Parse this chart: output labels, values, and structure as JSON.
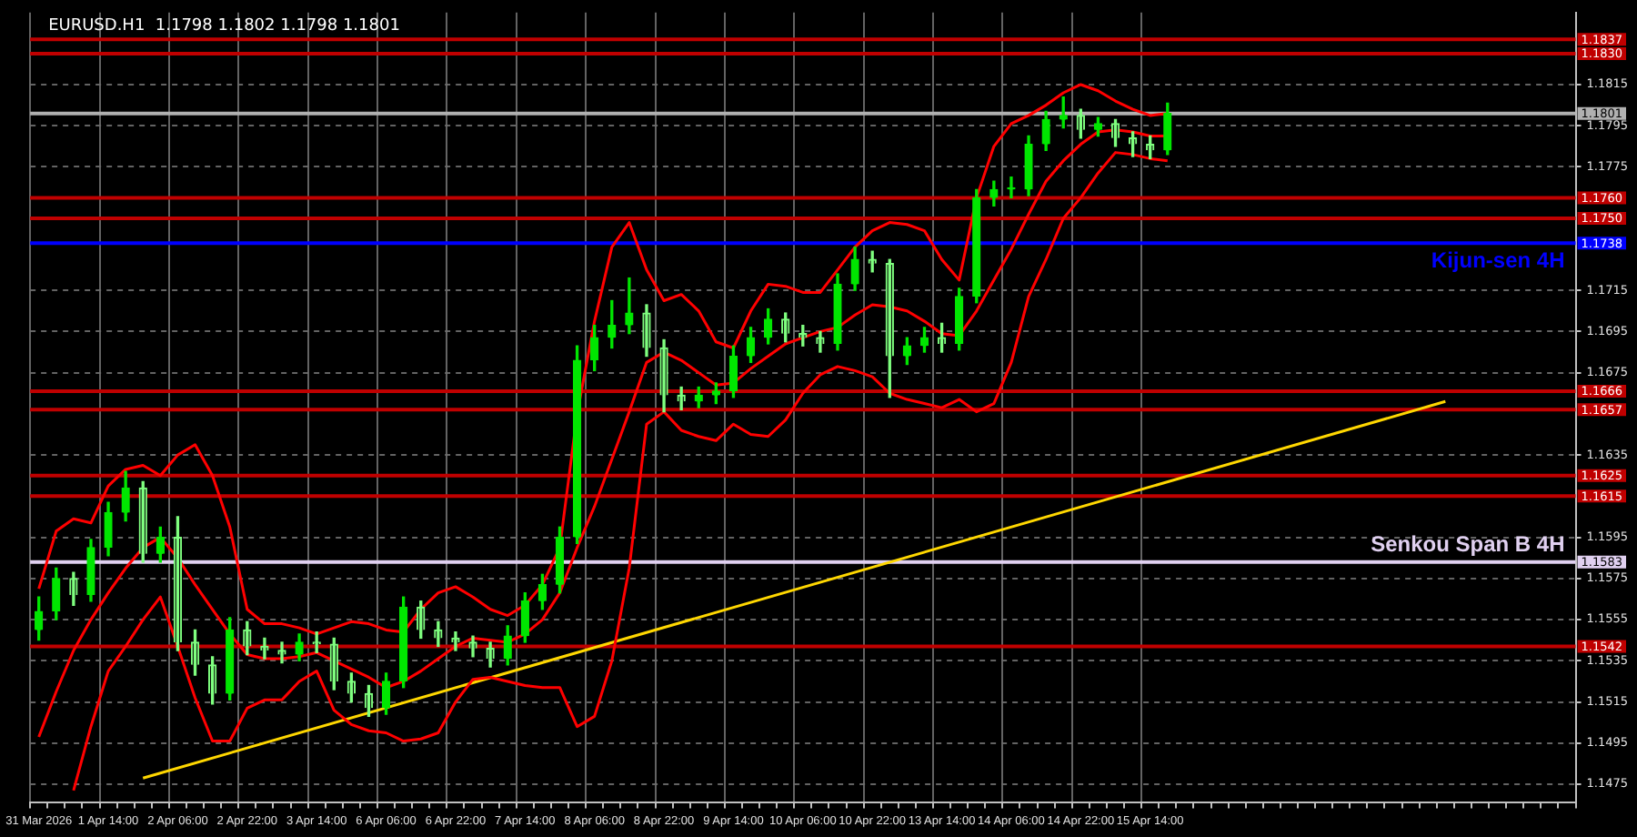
{
  "chart_data": {
    "type": "candlestick",
    "title": "EURUSD.H1  1.1798 1.1802 1.1798 1.1801",
    "colors": [
      "#00e600",
      "#00e600",
      "#7fff7f",
      "#00e600",
      "#00e600",
      "#00e600",
      "#7fff7f",
      "#00e600",
      "#7fff7f",
      "#7fff7f",
      "#7fff7f",
      "#00e600",
      "#7fff7f",
      "#7fff7f",
      "#7fff7f",
      "#00e600",
      "#7fff7f",
      "#7fff7f",
      "#7fff7f",
      "#7fff7f",
      "#00e600",
      "#00e600",
      "#7fff7f",
      "#7fff7f",
      "#7fff7f",
      "#7fff7f",
      "#7fff7f",
      "#00e600",
      "#00e600",
      "#00e600",
      "#00e600",
      "#00e600",
      "#00e600",
      "#00e600",
      "#00e600",
      "#7fff7f",
      "#7fff7f",
      "#7fff7f",
      "#00e600",
      "#00e600",
      "#00e600",
      "#00e600",
      "#00e600",
      "#7fff7f",
      "#7fff7f",
      "#7fff7f",
      "#00e600",
      "#00e600",
      "#7fff7f",
      "#7fff7f",
      "#00e600",
      "#00e600",
      "#7fff7f",
      "#00e600",
      "#00e600",
      "#00e600",
      "#00e600",
      "#00e600",
      "#00e600",
      "#00e600",
      "#7fff7f",
      "#00e600",
      "#7fff7f",
      "#7fff7f",
      "#7fff7f",
      "#00e600",
      null,
      null,
      null,
      null,
      null,
      null,
      null,
      null,
      null,
      null,
      null,
      null,
      null,
      null,
      null,
      null,
      null,
      null,
      null,
      null,
      null,
      null,
      null
    ],
    "categories": [
      "31 Mar 2026",
      null,
      null,
      null,
      "1 Apr 14:00",
      null,
      null,
      null,
      "2 Apr 06:00",
      null,
      null,
      null,
      "2 Apr 22:00",
      null,
      null,
      null,
      "3 Apr 14:00",
      null,
      null,
      null,
      "6 Apr 06:00",
      null,
      null,
      null,
      "6 Apr 22:00",
      null,
      null,
      null,
      "7 Apr 14:00",
      null,
      null,
      null,
      "8 Apr 06:00",
      null,
      null,
      null,
      "8 Apr 22:00",
      null,
      null,
      null,
      "9 Apr 14:00",
      null,
      null,
      null,
      "10 Apr 06:00",
      null,
      null,
      null,
      "10 Apr 22:00",
      null,
      null,
      null,
      "13 Apr 14:00",
      null,
      null,
      null,
      "14 Apr 06:00",
      null,
      null,
      null,
      "14 Apr 22:00",
      null,
      null,
      null,
      "15 Apr 14:00",
      null,
      null,
      null,
      null,
      null,
      null,
      null,
      null,
      null,
      null,
      null,
      null,
      null,
      null,
      null,
      null,
      null,
      null,
      null,
      null,
      null,
      null,
      null,
      null
    ],
    "ohlc": [
      [
        1.155,
        1.1566,
        1.1545,
        1.1559
      ],
      [
        1.1559,
        1.158,
        1.1555,
        1.1575
      ],
      [
        1.1575,
        1.1578,
        1.1562,
        1.1567
      ],
      [
        1.1567,
        1.1594,
        1.1564,
        1.159
      ],
      [
        1.159,
        1.1612,
        1.1586,
        1.1607
      ],
      [
        1.1607,
        1.1627,
        1.1603,
        1.1619
      ],
      [
        1.1619,
        1.1622,
        1.1583,
        1.1587
      ],
      [
        1.1587,
        1.16,
        1.1583,
        1.1595
      ],
      [
        1.1595,
        1.1605,
        1.154,
        1.1544
      ],
      [
        1.1544,
        1.155,
        1.1528,
        1.1533
      ],
      [
        1.1533,
        1.1537,
        1.1514,
        1.1519
      ],
      [
        1.1519,
        1.1556,
        1.1516,
        1.155
      ],
      [
        1.155,
        1.1554,
        1.1538,
        1.1542
      ],
      [
        1.1542,
        1.1546,
        1.1536,
        1.154
      ],
      [
        1.154,
        1.1544,
        1.1534,
        1.1538
      ],
      [
        1.1538,
        1.1548,
        1.1535,
        1.1544
      ],
      [
        1.1544,
        1.1549,
        1.1539,
        1.1543
      ],
      [
        1.1543,
        1.1546,
        1.1521,
        1.1525
      ],
      [
        1.1525,
        1.1529,
        1.1515,
        1.1519
      ],
      [
        1.1519,
        1.1523,
        1.1508,
        1.1512
      ],
      [
        1.1512,
        1.1529,
        1.1509,
        1.1525
      ],
      [
        1.1525,
        1.1566,
        1.1522,
        1.1561
      ],
      [
        1.1561,
        1.1564,
        1.1546,
        1.155
      ],
      [
        1.155,
        1.1554,
        1.1542,
        1.1546
      ],
      [
        1.1546,
        1.1549,
        1.154,
        1.1544
      ],
      [
        1.1544,
        1.1547,
        1.1537,
        1.1541
      ],
      [
        1.1541,
        1.1544,
        1.1532,
        1.1536
      ],
      [
        1.1536,
        1.1552,
        1.1533,
        1.1547
      ],
      [
        1.1547,
        1.1568,
        1.1544,
        1.1564
      ],
      [
        1.1564,
        1.1577,
        1.156,
        1.1572
      ],
      [
        1.1572,
        1.16,
        1.1568,
        1.1595
      ],
      [
        1.1595,
        1.1688,
        1.1592,
        1.1681
      ],
      [
        1.1681,
        1.1698,
        1.1676,
        1.1692
      ],
      [
        1.1692,
        1.171,
        1.1687,
        1.1698
      ],
      [
        1.1698,
        1.1721,
        1.1694,
        1.1704
      ],
      [
        1.1704,
        1.1708,
        1.1683,
        1.1687
      ],
      [
        1.1687,
        1.1691,
        1.1656,
        1.1664
      ],
      [
        1.1664,
        1.1668,
        1.1657,
        1.1661
      ],
      [
        1.1661,
        1.1668,
        1.1658,
        1.1664
      ],
      [
        1.1664,
        1.167,
        1.166,
        1.1666
      ],
      [
        1.1666,
        1.1688,
        1.1663,
        1.1683
      ],
      [
        1.1683,
        1.1697,
        1.168,
        1.1692
      ],
      [
        1.1692,
        1.1706,
        1.1689,
        1.1701
      ],
      [
        1.1701,
        1.1704,
        1.169,
        1.1694
      ],
      [
        1.1694,
        1.1698,
        1.1688,
        1.1692
      ],
      [
        1.1692,
        1.1695,
        1.1685,
        1.1689
      ],
      [
        1.1689,
        1.1723,
        1.1686,
        1.1718
      ],
      [
        1.1718,
        1.1736,
        1.1715,
        1.173
      ],
      [
        1.173,
        1.1734,
        1.1724,
        1.1728
      ],
      [
        1.1728,
        1.173,
        1.1663,
        1.1683
      ],
      [
        1.1683,
        1.1692,
        1.1679,
        1.1688
      ],
      [
        1.1688,
        1.1697,
        1.1685,
        1.1692
      ],
      [
        1.1692,
        1.1699,
        1.1685,
        1.1689
      ],
      [
        1.1689,
        1.1716,
        1.1686,
        1.1712
      ],
      [
        1.1712,
        1.1764,
        1.1709,
        1.176
      ],
      [
        1.176,
        1.1768,
        1.1756,
        1.1764
      ],
      [
        1.1764,
        1.177,
        1.176,
        1.1764
      ],
      [
        1.1764,
        1.179,
        1.1761,
        1.1786
      ],
      [
        1.1786,
        1.1802,
        1.1783,
        1.1798
      ],
      [
        1.1798,
        1.1809,
        1.1794,
        1.18
      ],
      [
        1.18,
        1.1803,
        1.1789,
        1.1793
      ],
      [
        1.1793,
        1.1799,
        1.179,
        1.1796
      ],
      [
        1.1796,
        1.1798,
        1.1785,
        1.1789
      ],
      [
        1.1789,
        1.1792,
        1.178,
        1.1786
      ],
      [
        1.1786,
        1.179,
        1.1779,
        1.1783
      ],
      [
        1.1783,
        1.1806,
        1.1781,
        1.1801
      ],
      null,
      null,
      null,
      null,
      null,
      null,
      null,
      null,
      null,
      null,
      null,
      null,
      null,
      null,
      null,
      null,
      null,
      null,
      null,
      null,
      null,
      null,
      null
    ],
    "series": [
      {
        "type": "line",
        "color": "#ff0000",
        "values": [
          1.157,
          1.1598,
          1.1604,
          1.1602,
          1.162,
          1.1628,
          1.163,
          1.1625,
          1.1635,
          1.164,
          1.1625,
          1.16,
          1.156,
          1.1553,
          1.1553,
          1.1551,
          1.1548,
          1.1551,
          1.1554,
          1.1553,
          1.155,
          1.1549,
          1.156,
          1.1568,
          1.1571,
          1.1566,
          1.156,
          1.1557,
          1.1562,
          1.1572,
          1.159,
          1.1655,
          1.17,
          1.1736,
          1.1748,
          1.1725,
          1.171,
          1.1713,
          1.1705,
          1.169,
          1.1687,
          1.1705,
          1.1718,
          1.1717,
          1.1714,
          1.1714,
          1.1725,
          1.1736,
          1.1744,
          1.1748,
          1.1747,
          1.1744,
          1.173,
          1.172,
          1.176,
          1.1785,
          1.1796,
          1.18,
          1.1805,
          1.1811,
          1.1815,
          1.1812,
          1.1807,
          1.1803,
          1.18,
          1.1801,
          null,
          null,
          null,
          null,
          null,
          null,
          null,
          null,
          null,
          null,
          null,
          null,
          null,
          null,
          null,
          null,
          null,
          null,
          null,
          null,
          null,
          null,
          null
        ]
      },
      {
        "type": "line",
        "color": "#ff0000",
        "values": [
          1.1498,
          1.152,
          1.154,
          1.1555,
          1.1568,
          1.158,
          1.159,
          1.1595,
          1.1585,
          1.1572,
          1.156,
          1.1548,
          1.1538,
          1.1536,
          1.1536,
          1.1537,
          1.1539,
          1.1535,
          1.1531,
          1.1527,
          1.1522,
          1.1525,
          1.153,
          1.1536,
          1.1542,
          1.1546,
          1.1545,
          1.1544,
          1.1548,
          1.1555,
          1.1568,
          1.159,
          1.161,
          1.1633,
          1.1656,
          1.168,
          1.1685,
          1.1681,
          1.1675,
          1.1669,
          1.167,
          1.1677,
          1.1683,
          1.1689,
          1.1692,
          1.1695,
          1.1697,
          1.1703,
          1.1708,
          1.1707,
          1.1705,
          1.17,
          1.1694,
          1.1693,
          1.1705,
          1.172,
          1.1735,
          1.1752,
          1.1768,
          1.1778,
          1.1786,
          1.1792,
          1.1793,
          1.1792,
          1.179,
          1.179,
          null,
          null,
          null,
          null,
          null,
          null,
          null,
          null,
          null,
          null,
          null,
          null,
          null,
          null,
          null,
          null,
          null,
          null,
          null,
          null,
          null,
          null,
          null
        ]
      },
      {
        "type": "line",
        "color": "#ff0000",
        "values": [
          null,
          null,
          1.1472,
          1.1503,
          1.153,
          1.1542,
          1.1555,
          1.1566,
          1.1542,
          1.1517,
          1.1496,
          1.1496,
          1.1512,
          1.1516,
          1.1516,
          1.1525,
          1.153,
          1.1511,
          1.1504,
          1.1501,
          1.15,
          1.1496,
          1.1497,
          1.15,
          1.1515,
          1.1526,
          1.1527,
          1.1525,
          1.1523,
          1.1522,
          1.1522,
          1.1503,
          1.1508,
          1.1535,
          1.158,
          1.165,
          1.1656,
          1.1647,
          1.1644,
          1.1642,
          1.165,
          1.1645,
          1.1644,
          1.1652,
          1.1665,
          1.1674,
          1.1678,
          1.1676,
          1.1673,
          1.1665,
          1.1662,
          1.166,
          1.1658,
          1.1662,
          1.1656,
          1.166,
          1.168,
          1.1712,
          1.173,
          1.175,
          1.176,
          1.1772,
          1.1782,
          1.1781,
          1.1779,
          1.1778,
          null,
          null,
          null,
          null,
          null,
          null,
          null,
          null,
          null,
          null,
          null,
          null,
          null,
          null,
          null,
          null,
          null,
          null,
          null,
          null,
          null,
          null,
          null
        ]
      },
      {
        "type": "line",
        "color": "#ffd700",
        "values": [
          null,
          null,
          null,
          null,
          null,
          null,
          1.1478,
          null,
          null,
          null,
          null,
          null,
          null,
          null,
          null,
          null,
          null,
          null,
          null,
          null,
          null,
          null,
          null,
          null,
          null,
          null,
          null,
          null,
          null,
          null,
          null,
          null,
          null,
          null,
          null,
          null,
          null,
          null,
          null,
          null,
          null,
          null,
          null,
          null,
          null,
          null,
          null,
          null,
          null,
          null,
          null,
          null,
          null,
          null,
          null,
          null,
          null,
          null,
          null,
          null,
          null,
          null,
          null,
          null,
          null,
          null,
          null,
          null,
          null,
          null,
          null,
          null,
          null,
          null,
          null,
          null,
          null,
          null,
          null,
          null,
          null,
          1.1661,
          null,
          null,
          null,
          null,
          null,
          null,
          null
        ]
      }
    ],
    "ylim": [
      1.1466,
      1.185
    ],
    "yticks": [
      1.1475,
      1.1495,
      1.1515,
      1.1535,
      1.1555,
      1.1575,
      1.1595,
      1.1635,
      1.1675,
      1.1695,
      1.1715,
      1.1775,
      1.1795,
      1.1815
    ],
    "ref_lines": [
      {
        "axis": "y",
        "value": 1.1837,
        "color": "#c00000",
        "label": "1.1837"
      },
      {
        "axis": "y",
        "value": 1.183,
        "color": "#c00000",
        "label": "1.1830"
      },
      {
        "axis": "y",
        "value": 1.1801,
        "color": "#b0b0b0",
        "label": "1.1801"
      },
      {
        "axis": "y",
        "value": 1.176,
        "color": "#c00000",
        "label": "1.1760"
      },
      {
        "axis": "y",
        "value": 1.175,
        "color": "#c00000",
        "label": "1.1750"
      },
      {
        "axis": "y",
        "value": 1.1738,
        "color": "#0000ff",
        "label": "1.1738"
      },
      {
        "axis": "y",
        "value": 1.1666,
        "color": "#c00000",
        "label": "1.1666"
      },
      {
        "axis": "y",
        "value": 1.1657,
        "color": "#c00000",
        "label": "1.1657"
      },
      {
        "axis": "y",
        "value": 1.1625,
        "color": "#c00000",
        "label": "1.1625"
      },
      {
        "axis": "y",
        "value": 1.1615,
        "color": "#c00000",
        "label": "1.1615"
      },
      {
        "axis": "y",
        "value": 1.1583,
        "color": "#e0d0f0",
        "label": "1.1583"
      },
      {
        "axis": "y",
        "value": 1.1542,
        "color": "#c00000",
        "label": "1.1542"
      }
    ],
    "annotations": [
      {
        "text": "Kijun-sen 4H",
        "y": 1.1738
      },
      {
        "text": "Senkou Span B 4H",
        "y": 1.1583
      }
    ],
    "grid": true,
    "legend": false,
    "marker": "none",
    "line_style": "solid"
  }
}
